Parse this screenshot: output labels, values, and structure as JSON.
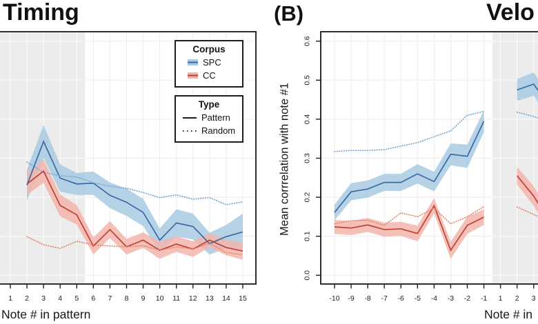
{
  "figure": {
    "panel_a": {
      "title": "Timing",
      "xlabel": "Note # in pattern"
    },
    "panel_b": {
      "label": "(B)",
      "title": "Velo",
      "xlabel": "Note # in",
      "ylabel": "Mean corrrelation with note #1"
    }
  },
  "legend": {
    "corpus": {
      "title": "Corpus",
      "items": [
        {
          "label": "SPC"
        },
        {
          "label": "CC"
        }
      ]
    },
    "type": {
      "title": "Type",
      "items": [
        {
          "label": "Pattern"
        },
        {
          "label": "Random"
        }
      ]
    }
  },
  "colors": {
    "spc_line": "#3a6aa5",
    "spc_ribbon": "#a8cae2",
    "spc_dotted": "#79a8d2",
    "cc_line": "#bf3f35",
    "cc_ribbon": "#f2b5ab",
    "cc_dotted": "#e2876c",
    "band": "#ececec",
    "border": "#2e2e2e",
    "grid": "#f0e8e8",
    "band_grid": "#ffffff"
  },
  "chart_data": [
    {
      "type": "line",
      "panel": "A",
      "title": "Timing",
      "xlabel": "Note # in pattern",
      "grid": true,
      "shaded_region": "left edge to x=5.5",
      "categories": [
        "1",
        "2",
        "3",
        "4",
        "5",
        "6",
        "7",
        "8",
        "9",
        "10",
        "11",
        "12",
        "13",
        "14",
        "15"
      ],
      "series": [
        {
          "name": "SPC Pattern",
          "corpus": "SPC",
          "linetype": "solid",
          "color": "#3a6aa5",
          "ribbon_color": "#a8cae2",
          "values": [
            null,
            0.231,
            0.343,
            0.249,
            0.234,
            0.236,
            0.205,
            0.187,
            0.161,
            0.09,
            0.134,
            0.125,
            0.081,
            0.099,
            0.111
          ],
          "ribbon": [
            null,
            0.04,
            0.042,
            0.035,
            0.028,
            0.03,
            0.033,
            0.035,
            0.035,
            0.03,
            0.035,
            0.033,
            0.028,
            0.03,
            0.047
          ]
        },
        {
          "name": "SPC Random",
          "corpus": "SPC",
          "linetype": "dotted",
          "color": "#79a8d2",
          "values": [
            null,
            0.29,
            0.264,
            0.255,
            0.252,
            0.237,
            0.228,
            0.223,
            0.212,
            0.199,
            0.206,
            0.195,
            0.199,
            0.181,
            0.188
          ]
        },
        {
          "name": "CC Pattern",
          "corpus": "CC",
          "linetype": "solid",
          "color": "#bf3f35",
          "ribbon_color": "#f2b5ab",
          "values": [
            null,
            0.234,
            0.267,
            0.179,
            0.155,
            0.075,
            0.117,
            0.073,
            0.09,
            0.064,
            0.08,
            0.067,
            0.09,
            0.071,
            0.062
          ],
          "ribbon": [
            null,
            0.028,
            0.03,
            0.028,
            0.025,
            0.022,
            0.022,
            0.02,
            0.02,
            0.022,
            0.02,
            0.02,
            0.018,
            0.02,
            0.022
          ]
        },
        {
          "name": "CC Random",
          "corpus": "CC",
          "linetype": "dotted",
          "color": "#e2876c",
          "values": [
            null,
            0.099,
            0.078,
            0.069,
            0.087,
            0.078,
            0.075,
            0.073,
            0.076,
            0.064,
            0.073,
            0.067,
            0.082,
            0.058,
            0.053
          ]
        }
      ]
    },
    {
      "type": "line",
      "panel": "B",
      "title": "Velo",
      "xlabel": "Note # in",
      "ylabel": "Mean corrrelation with note #1",
      "grid": true,
      "ylim": [
        0.0,
        0.6
      ],
      "yticks": [
        "0.0",
        "0.1",
        "0.2",
        "0.3",
        "0.4",
        "0.5",
        "0.6"
      ],
      "shaded_region": "x=0 to right edge (clipped)",
      "categories": [
        "-10",
        "-9",
        "-8",
        "-7",
        "-6",
        "-5",
        "-4",
        "-3",
        "-2",
        "-1",
        "1",
        "2",
        "3"
      ],
      "series": [
        {
          "name": "SPC Pattern",
          "corpus": "SPC",
          "linetype": "solid",
          "color": "#3a6aa5",
          "ribbon_color": "#a8cae2",
          "values": [
            0.161,
            0.214,
            0.221,
            0.238,
            0.238,
            0.26,
            0.24,
            0.31,
            0.305,
            0.395,
            null,
            0.475,
            0.49
          ],
          "edge_value": 0.474,
          "ribbon": [
            0.02,
            0.022,
            0.022,
            0.022,
            0.022,
            0.025,
            0.025,
            0.028,
            0.03,
            0.028,
            null,
            0.028,
            0.03
          ],
          "edge_ribbon": 0.03
        },
        {
          "name": "SPC Random",
          "corpus": "SPC",
          "linetype": "dotted",
          "color": "#79a8d2",
          "values": [
            0.317,
            0.32,
            0.32,
            0.322,
            0.331,
            0.34,
            0.355,
            0.37,
            0.41,
            0.42,
            null,
            0.418,
            0.407
          ],
          "edge_value": 0.403
        },
        {
          "name": "CC Pattern",
          "corpus": "CC",
          "linetype": "solid",
          "color": "#bf3f35",
          "ribbon_color": "#f2b5ab",
          "values": [
            0.124,
            0.121,
            0.129,
            0.117,
            0.119,
            0.107,
            0.178,
            0.064,
            0.128,
            0.149,
            null,
            0.255,
            0.203
          ],
          "edge_value": 0.185,
          "ribbon": [
            0.018,
            0.018,
            0.018,
            0.018,
            0.018,
            0.02,
            0.02,
            0.022,
            0.022,
            0.02,
            null,
            0.022,
            0.025
          ],
          "edge_ribbon": 0.025
        },
        {
          "name": "CC Random",
          "corpus": "CC",
          "linetype": "dotted",
          "color": "#e2876c",
          "values": [
            0.132,
            0.14,
            0.141,
            0.128,
            0.16,
            0.15,
            0.172,
            0.132,
            0.15,
            0.176,
            null,
            0.175,
            0.156
          ],
          "edge_value": 0.15
        }
      ]
    }
  ]
}
